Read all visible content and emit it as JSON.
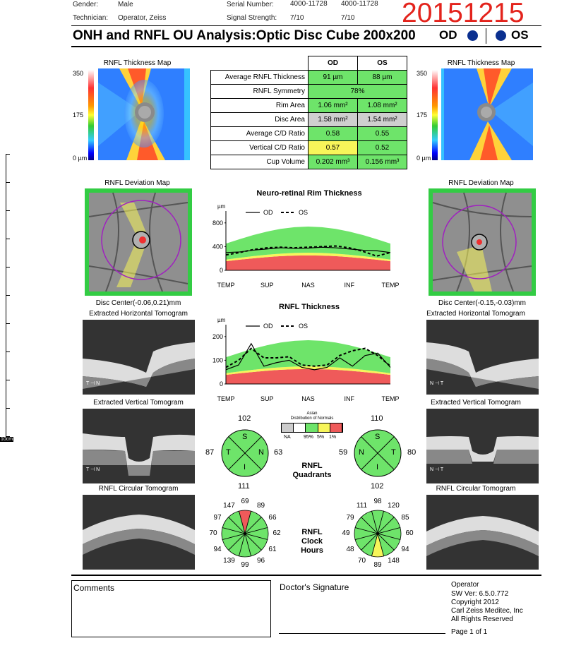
{
  "header": {
    "gender_label": "Gender:",
    "gender": "Male",
    "tech_label": "Technician:",
    "tech": "Operator, Zeiss",
    "serial_label": "Serial Number:",
    "serial_od": "4000-11728",
    "serial_os": "4000-11728",
    "signal_label": "Signal Strength:",
    "signal_od": "7/10",
    "signal_os": "7/10",
    "date_stamp": "20151215",
    "title": "ONH and RNFL OU Analysis:Optic Disc Cube 200x200",
    "od": "OD",
    "os": "OS"
  },
  "maps": {
    "thickness_title": "RNFL Thickness Map",
    "deviation_title": "RNFL Deviation Map",
    "scale_max": "350",
    "scale_mid": "175",
    "scale_min": "0 µm",
    "od_disc_center": "Disc Center(-0.06,0.21)mm",
    "os_disc_center": "Disc Center(-0.15,-0.03)mm",
    "h_tomo": "Extracted Horizontal Tomogram",
    "v_tomo": "Extracted Vertical Tomogram",
    "c_tomo": "RNFL Circular Tomogram"
  },
  "params": {
    "head_od": "OD",
    "head_os": "OS",
    "rows": [
      {
        "label": "Average RNFL Thickness",
        "od": "91 µm",
        "os": "88 µm"
      },
      {
        "label": "RNFL Symmetry",
        "both": "78%"
      },
      {
        "label": "Rim Area",
        "od": "1.06 mm²",
        "os": "1.08 mm²"
      },
      {
        "label": "Disc Area",
        "od": "1.58 mm²",
        "os": "1.54 mm²"
      },
      {
        "label": "Average C/D Ratio",
        "od": "0.58",
        "os": "0.55"
      },
      {
        "label": "Vertical C/D Ratio",
        "od": "0.57",
        "os": "0.52"
      },
      {
        "label": "Cup Volume",
        "od": "0.202 mm³",
        "os": "0.156 mm³"
      }
    ]
  },
  "chart_data": [
    {
      "type": "area",
      "title": "Neuro-retinal Rim Thickness",
      "ylabel": "µm",
      "y_ticks": [
        "800",
        "400",
        "0"
      ],
      "ylim": [
        0,
        1000
      ],
      "x_ticks": [
        "TEMP",
        "SUP",
        "NAS",
        "INF",
        "TEMP"
      ],
      "legend": [
        "OD",
        "OS"
      ],
      "series": [
        {
          "name": "OD",
          "values": [
            300,
            310,
            340,
            360,
            380,
            370,
            375,
            390,
            380,
            360,
            340,
            330,
            300
          ]
        },
        {
          "name": "OS",
          "values": [
            260,
            300,
            350,
            380,
            390,
            380,
            390,
            400,
            410,
            380,
            320,
            240,
            300
          ]
        }
      ]
    },
    {
      "type": "area",
      "title": "RNFL Thickness",
      "ylabel": "µm",
      "y_ticks": [
        "200",
        "100",
        "0"
      ],
      "ylim": [
        0,
        250
      ],
      "x_ticks": [
        "TEMP",
        "SUP",
        "NAS",
        "INF",
        "TEMP"
      ],
      "legend": [
        "OD",
        "OS"
      ],
      "series": [
        {
          "name": "OD",
          "values": [
            60,
            80,
            170,
            75,
            90,
            100,
            70,
            60,
            70,
            110,
            75,
            120,
            130,
            70
          ]
        },
        {
          "name": "OS",
          "values": [
            70,
            100,
            150,
            110,
            110,
            115,
            80,
            75,
            80,
            120,
            140,
            150,
            120,
            75
          ]
        }
      ]
    }
  ],
  "quadrants": {
    "title_line1": "RNFL",
    "title_line2": "Quadrants",
    "od": {
      "top": "102",
      "left": "87",
      "right": "63",
      "bottom": "111",
      "S": "S",
      "T": "T",
      "N": "N",
      "I": "I"
    },
    "os": {
      "top": "110",
      "left": "59",
      "right": "80",
      "bottom": "102",
      "S": "S",
      "N": "N",
      "T": "T",
      "I": "I"
    },
    "legend_title1": "Asian",
    "legend_title2": "Distribution of Normals",
    "legend_labels": [
      "NA",
      "95%",
      "5%",
      "1%"
    ],
    "legend_colors": [
      "#cccccc",
      "#ffffff",
      "#6ee46a",
      "#f7f55a",
      "#ef5a5a"
    ]
  },
  "clock": {
    "title_line1": "RNFL",
    "title_line2": "Clock",
    "title_line3": "Hours",
    "od": [
      "69",
      "89",
      "66",
      "62",
      "61",
      "96",
      "99",
      "139",
      "94",
      "70",
      "97",
      "147"
    ],
    "os": [
      "98",
      "120",
      "85",
      "60",
      "94",
      "148",
      "89",
      "70",
      "48",
      "49",
      "79",
      "111"
    ],
    "od_red_index": 0,
    "os_yellow_index": 6
  },
  "footer": {
    "comments": "Comments",
    "signature": "Doctor's Signature",
    "operator": "Operator",
    "sw": "SW Ver: 6.5.0.772",
    "copyright": "Copyright 2012",
    "company": "Carl Zeiss Meditec, Inc",
    "rights": "All Rights Reserved",
    "page": "Page 1 of 1"
  },
  "ruler_label": "10cm"
}
